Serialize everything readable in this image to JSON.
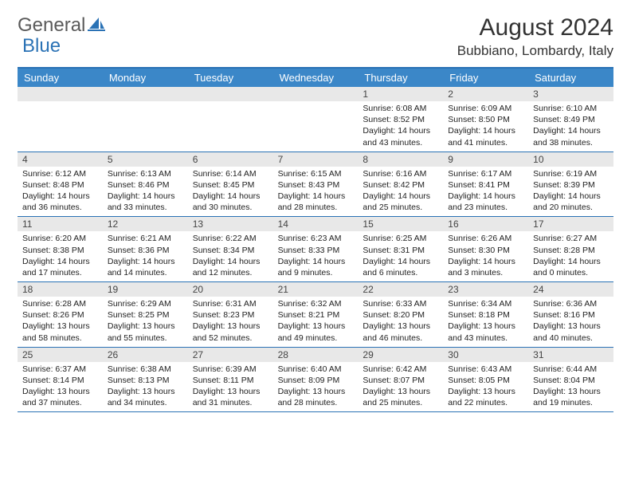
{
  "logo": {
    "text_general": "General",
    "text_blue": "Blue"
  },
  "title": "August 2024",
  "location": "Bubbiano, Lombardy, Italy",
  "colors": {
    "header_bar": "#3b87c8",
    "border": "#2a72b5",
    "date_bg": "#e8e8e8",
    "logo_gray": "#5a5a5a",
    "logo_blue": "#2a72b5"
  },
  "day_names": [
    "Sunday",
    "Monday",
    "Tuesday",
    "Wednesday",
    "Thursday",
    "Friday",
    "Saturday"
  ],
  "weeks": [
    [
      null,
      null,
      null,
      null,
      {
        "d": "1",
        "sr": "6:08 AM",
        "ss": "8:52 PM",
        "dl": "14 hours and 43 minutes."
      },
      {
        "d": "2",
        "sr": "6:09 AM",
        "ss": "8:50 PM",
        "dl": "14 hours and 41 minutes."
      },
      {
        "d": "3",
        "sr": "6:10 AM",
        "ss": "8:49 PM",
        "dl": "14 hours and 38 minutes."
      }
    ],
    [
      {
        "d": "4",
        "sr": "6:12 AM",
        "ss": "8:48 PM",
        "dl": "14 hours and 36 minutes."
      },
      {
        "d": "5",
        "sr": "6:13 AM",
        "ss": "8:46 PM",
        "dl": "14 hours and 33 minutes."
      },
      {
        "d": "6",
        "sr": "6:14 AM",
        "ss": "8:45 PM",
        "dl": "14 hours and 30 minutes."
      },
      {
        "d": "7",
        "sr": "6:15 AM",
        "ss": "8:43 PM",
        "dl": "14 hours and 28 minutes."
      },
      {
        "d": "8",
        "sr": "6:16 AM",
        "ss": "8:42 PM",
        "dl": "14 hours and 25 minutes."
      },
      {
        "d": "9",
        "sr": "6:17 AM",
        "ss": "8:41 PM",
        "dl": "14 hours and 23 minutes."
      },
      {
        "d": "10",
        "sr": "6:19 AM",
        "ss": "8:39 PM",
        "dl": "14 hours and 20 minutes."
      }
    ],
    [
      {
        "d": "11",
        "sr": "6:20 AM",
        "ss": "8:38 PM",
        "dl": "14 hours and 17 minutes."
      },
      {
        "d": "12",
        "sr": "6:21 AM",
        "ss": "8:36 PM",
        "dl": "14 hours and 14 minutes."
      },
      {
        "d": "13",
        "sr": "6:22 AM",
        "ss": "8:34 PM",
        "dl": "14 hours and 12 minutes."
      },
      {
        "d": "14",
        "sr": "6:23 AM",
        "ss": "8:33 PM",
        "dl": "14 hours and 9 minutes."
      },
      {
        "d": "15",
        "sr": "6:25 AM",
        "ss": "8:31 PM",
        "dl": "14 hours and 6 minutes."
      },
      {
        "d": "16",
        "sr": "6:26 AM",
        "ss": "8:30 PM",
        "dl": "14 hours and 3 minutes."
      },
      {
        "d": "17",
        "sr": "6:27 AM",
        "ss": "8:28 PM",
        "dl": "14 hours and 0 minutes."
      }
    ],
    [
      {
        "d": "18",
        "sr": "6:28 AM",
        "ss": "8:26 PM",
        "dl": "13 hours and 58 minutes."
      },
      {
        "d": "19",
        "sr": "6:29 AM",
        "ss": "8:25 PM",
        "dl": "13 hours and 55 minutes."
      },
      {
        "d": "20",
        "sr": "6:31 AM",
        "ss": "8:23 PM",
        "dl": "13 hours and 52 minutes."
      },
      {
        "d": "21",
        "sr": "6:32 AM",
        "ss": "8:21 PM",
        "dl": "13 hours and 49 minutes."
      },
      {
        "d": "22",
        "sr": "6:33 AM",
        "ss": "8:20 PM",
        "dl": "13 hours and 46 minutes."
      },
      {
        "d": "23",
        "sr": "6:34 AM",
        "ss": "8:18 PM",
        "dl": "13 hours and 43 minutes."
      },
      {
        "d": "24",
        "sr": "6:36 AM",
        "ss": "8:16 PM",
        "dl": "13 hours and 40 minutes."
      }
    ],
    [
      {
        "d": "25",
        "sr": "6:37 AM",
        "ss": "8:14 PM",
        "dl": "13 hours and 37 minutes."
      },
      {
        "d": "26",
        "sr": "6:38 AM",
        "ss": "8:13 PM",
        "dl": "13 hours and 34 minutes."
      },
      {
        "d": "27",
        "sr": "6:39 AM",
        "ss": "8:11 PM",
        "dl": "13 hours and 31 minutes."
      },
      {
        "d": "28",
        "sr": "6:40 AM",
        "ss": "8:09 PM",
        "dl": "13 hours and 28 minutes."
      },
      {
        "d": "29",
        "sr": "6:42 AM",
        "ss": "8:07 PM",
        "dl": "13 hours and 25 minutes."
      },
      {
        "d": "30",
        "sr": "6:43 AM",
        "ss": "8:05 PM",
        "dl": "13 hours and 22 minutes."
      },
      {
        "d": "31",
        "sr": "6:44 AM",
        "ss": "8:04 PM",
        "dl": "13 hours and 19 minutes."
      }
    ]
  ],
  "labels": {
    "sunrise": "Sunrise: ",
    "sunset": "Sunset: ",
    "daylight": "Daylight: "
  }
}
